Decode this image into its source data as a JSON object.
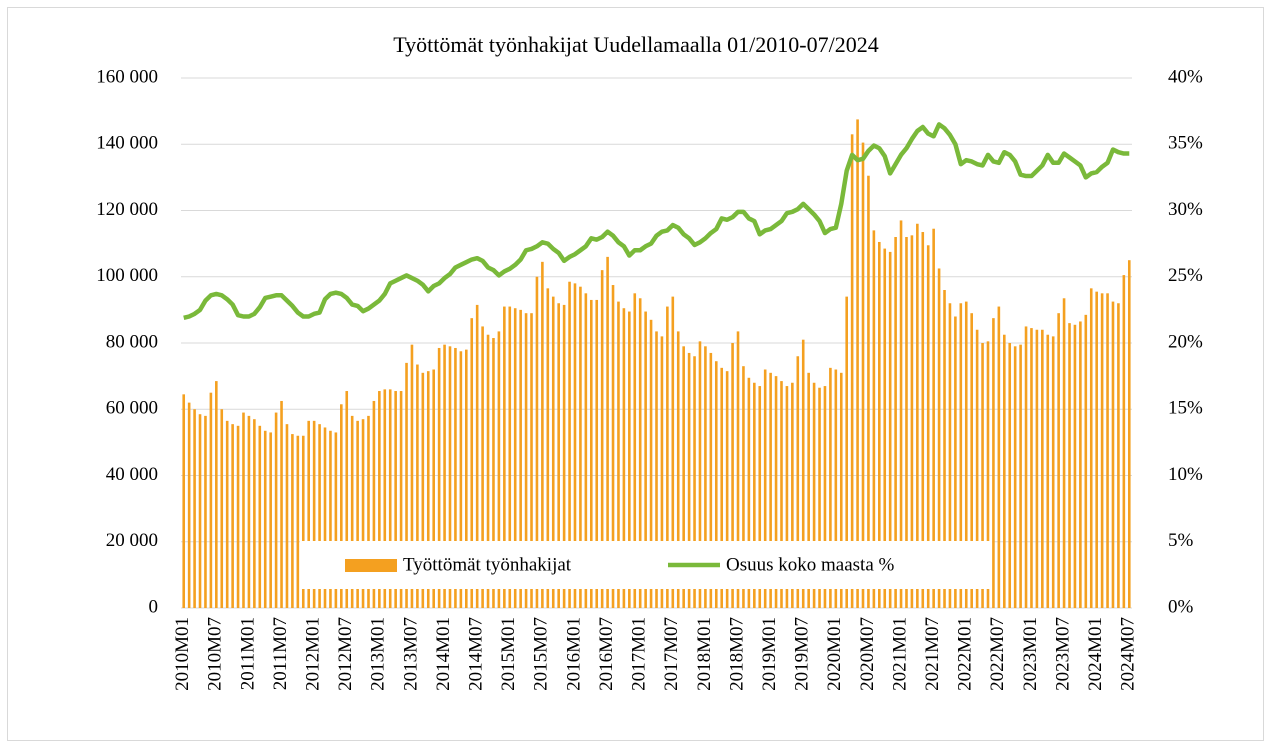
{
  "chart_data": {
    "type": "bar",
    "title": "Työttömät työnhakijat Uudellamaalla 01/2010-07/2024",
    "categories": [
      "2010M01",
      null,
      null,
      null,
      null,
      null,
      "2010M07",
      null,
      null,
      null,
      null,
      null,
      "2011M01",
      null,
      null,
      null,
      null,
      null,
      "2011M07",
      null,
      null,
      null,
      null,
      null,
      "2012M01",
      null,
      null,
      null,
      null,
      null,
      "2012M07",
      null,
      null,
      null,
      null,
      null,
      "2013M01",
      null,
      null,
      null,
      null,
      null,
      "2013M07",
      null,
      null,
      null,
      null,
      null,
      "2014M01",
      null,
      null,
      null,
      null,
      null,
      "2014M07",
      null,
      null,
      null,
      null,
      null,
      "2015M01",
      null,
      null,
      null,
      null,
      null,
      "2015M07",
      null,
      null,
      null,
      null,
      null,
      "2016M01",
      null,
      null,
      null,
      null,
      null,
      "2016M07",
      null,
      null,
      null,
      null,
      null,
      "2017M01",
      null,
      null,
      null,
      null,
      null,
      "2017M07",
      null,
      null,
      null,
      null,
      null,
      "2018M01",
      null,
      null,
      null,
      null,
      null,
      "2018M07",
      null,
      null,
      null,
      null,
      null,
      "2019M01",
      null,
      null,
      null,
      null,
      null,
      "2019M07",
      null,
      null,
      null,
      null,
      null,
      "2020M01",
      null,
      null,
      null,
      null,
      null,
      "2020M07",
      null,
      null,
      null,
      null,
      null,
      "2021M01",
      null,
      null,
      null,
      null,
      null,
      "2021M07",
      null,
      null,
      null,
      null,
      null,
      "2022M01",
      null,
      null,
      null,
      null,
      null,
      "2022M07",
      null,
      null,
      null,
      null,
      null,
      "2023M01",
      null,
      null,
      null,
      null,
      null,
      "2023M07",
      null,
      null,
      null,
      null,
      null,
      "2024M01",
      null,
      null,
      null,
      null,
      null,
      "2024M07"
    ],
    "series": [
      {
        "name": "Työttömät työnhakijat",
        "type": "bar",
        "color": "#f4a020",
        "values": [
          64500,
          62000,
          60000,
          58500,
          58000,
          65000,
          68500,
          60000,
          56500,
          55500,
          55000,
          59000,
          58000,
          57000,
          55000,
          53500,
          53000,
          59000,
          62500,
          55500,
          52500,
          52000,
          52000,
          56500,
          56500,
          55500,
          54500,
          53500,
          53000,
          61500,
          65500,
          58000,
          56500,
          57000,
          58000,
          62500,
          65500,
          66000,
          66000,
          65500,
          65500,
          74000,
          79500,
          73500,
          71000,
          71500,
          72000,
          78500,
          79500,
          79000,
          78500,
          77500,
          78000,
          87500,
          91500,
          85000,
          82500,
          81500,
          83500,
          91000,
          91000,
          90500,
          90000,
          89000,
          89000,
          100000,
          104500,
          96500,
          94000,
          92000,
          91500,
          98500,
          98000,
          97000,
          95000,
          93000,
          93000,
          102000,
          106000,
          97500,
          92500,
          90500,
          89500,
          95000,
          93500,
          89500,
          87000,
          83500,
          82000,
          91000,
          94000,
          83500,
          79000,
          77000,
          76000,
          80500,
          79000,
          77000,
          74500,
          72500,
          71500,
          80000,
          83500,
          73000,
          69500,
          68000,
          67000,
          72000,
          71000,
          70000,
          68500,
          67000,
          68000,
          76000,
          81000,
          71000,
          68000,
          66500,
          67000,
          72500,
          72000,
          71000,
          94000,
          143000,
          147500,
          140500,
          130500,
          114000,
          110500,
          108500,
          107500,
          112000,
          117000,
          112000,
          112500,
          116000,
          113500,
          109500,
          114500,
          102500,
          96000,
          92000,
          88000,
          92000,
          92500,
          89000,
          84000,
          80000,
          80500,
          87500,
          91000,
          82500,
          80000,
          79000,
          79500,
          85000,
          84500,
          84000,
          84000,
          82500,
          82000,
          89000,
          93500,
          86000,
          85500,
          86500,
          88500,
          96500,
          95500,
          95000,
          95000,
          92500,
          92000,
          100500,
          105000
        ]
      },
      {
        "name": "Osuus koko maasta %",
        "type": "line",
        "axis": "y2",
        "color": "#7ab93a",
        "values": [
          21.9,
          22.0,
          22.2,
          22.5,
          23.2,
          23.6,
          23.7,
          23.6,
          23.3,
          22.9,
          22.1,
          22.0,
          22.0,
          22.2,
          22.7,
          23.4,
          23.5,
          23.6,
          23.6,
          23.2,
          22.8,
          22.3,
          22.0,
          22.0,
          22.2,
          22.3,
          23.3,
          23.7,
          23.8,
          23.7,
          23.4,
          22.9,
          22.8,
          22.4,
          22.6,
          22.9,
          23.2,
          23.7,
          24.5,
          24.7,
          24.9,
          25.1,
          24.9,
          24.7,
          24.4,
          23.9,
          24.3,
          24.5,
          24.9,
          25.2,
          25.7,
          25.9,
          26.1,
          26.3,
          26.4,
          26.2,
          25.7,
          25.5,
          25.1,
          25.4,
          25.6,
          25.9,
          26.3,
          27.0,
          27.1,
          27.3,
          27.6,
          27.5,
          27.1,
          26.8,
          26.2,
          26.5,
          26.7,
          27.0,
          27.3,
          27.9,
          27.8,
          28.0,
          28.4,
          28.1,
          27.6,
          27.3,
          26.6,
          27.0,
          27.0,
          27.3,
          27.5,
          28.1,
          28.4,
          28.5,
          28.9,
          28.7,
          28.2,
          27.9,
          27.4,
          27.6,
          27.9,
          28.3,
          28.6,
          29.4,
          29.3,
          29.5,
          29.9,
          29.9,
          29.4,
          29.2,
          28.2,
          28.5,
          28.6,
          28.9,
          29.2,
          29.8,
          29.9,
          30.1,
          30.5,
          30.1,
          29.7,
          29.2,
          28.3,
          28.6,
          28.7,
          30.5,
          33.0,
          34.2,
          33.8,
          33.9,
          34.5,
          34.9,
          34.7,
          34.1,
          32.8,
          33.5,
          34.2,
          34.7,
          35.4,
          36.0,
          36.3,
          35.8,
          35.6,
          36.5,
          36.2,
          35.7,
          35.0,
          33.5,
          33.8,
          33.7,
          33.5,
          33.4,
          34.2,
          33.7,
          33.6,
          34.4,
          34.2,
          33.7,
          32.7,
          32.6,
          32.6,
          33.0,
          33.4,
          34.2,
          33.6,
          33.6,
          34.3,
          34.0,
          33.7,
          33.4,
          32.5,
          32.8,
          32.9,
          33.3,
          33.6,
          34.6,
          34.4,
          34.3,
          34.3
        ]
      }
    ],
    "ylim": [
      0,
      160000
    ],
    "yticks": [
      0,
      {
        "value": 20000,
        "label": "20 000"
      },
      {
        "value": 40000,
        "label": "40 000"
      },
      {
        "value": 60000,
        "label": "60 000"
      },
      {
        "value": 80000,
        "label": "80 000"
      },
      {
        "value": 100000,
        "label": "100 000"
      },
      {
        "value": 120000,
        "label": "120 000"
      },
      {
        "value": 140000,
        "label": "140 000"
      },
      {
        "value": 160000,
        "label": "160 000"
      }
    ],
    "y2lim": [
      0,
      40
    ],
    "y2ticks": [
      {
        "value": 0,
        "label": "0%"
      },
      {
        "value": 5,
        "label": "5%"
      },
      {
        "value": 10,
        "label": "10%"
      },
      {
        "value": 15,
        "label": "15%"
      },
      {
        "value": 20,
        "label": "20%"
      },
      {
        "value": 25,
        "label": "25%"
      },
      {
        "value": 30,
        "label": "30%"
      },
      {
        "value": 35,
        "label": "35%"
      },
      {
        "value": 40,
        "label": "40%"
      }
    ],
    "grid": true,
    "legend": "bottom"
  }
}
